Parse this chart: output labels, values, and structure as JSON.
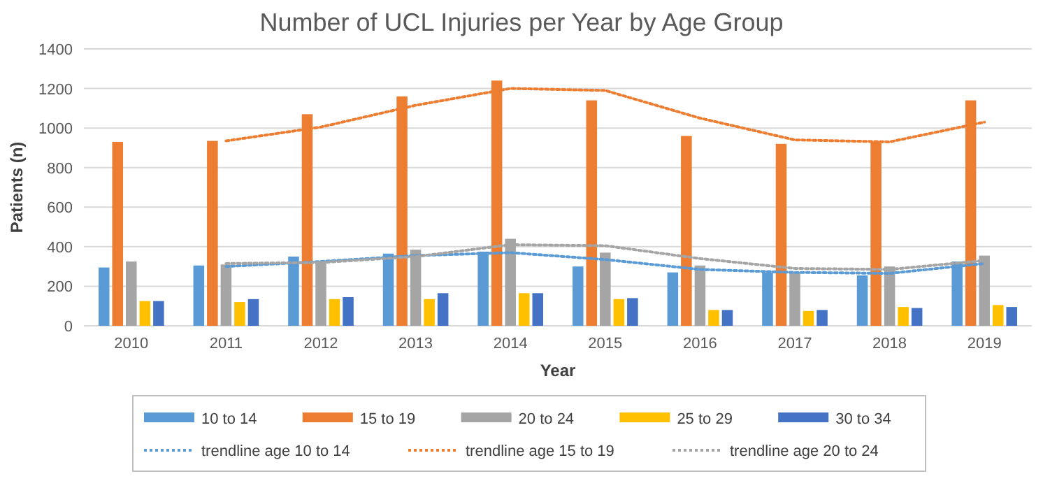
{
  "chart_data": {
    "type": "bar",
    "title": "Number of UCL Injuries per Year by Age Group",
    "xlabel": "Year",
    "ylabel": "Patients (n)",
    "categories": [
      "2010",
      "2011",
      "2012",
      "2013",
      "2014",
      "2015",
      "2016",
      "2017",
      "2018",
      "2019"
    ],
    "ylim": [
      0,
      1400
    ],
    "yticks": [
      0,
      200,
      400,
      600,
      800,
      1000,
      1200,
      1400
    ],
    "grid": "y",
    "legend": "bottom",
    "series": [
      {
        "name": "10 to 14",
        "color": "#5b9bd5",
        "values": [
          295,
          305,
          350,
          365,
          375,
          300,
          270,
          270,
          255,
          325
        ]
      },
      {
        "name": "15 to 19",
        "color": "#ed7d31",
        "values": [
          930,
          935,
          1070,
          1160,
          1240,
          1140,
          960,
          920,
          930,
          1140
        ]
      },
      {
        "name": "20 to 24",
        "color": "#a5a5a5",
        "values": [
          325,
          310,
          320,
          385,
          440,
          370,
          305,
          270,
          300,
          355
        ]
      },
      {
        "name": "25 to 29",
        "color": "#ffc000",
        "values": [
          125,
          120,
          135,
          135,
          165,
          135,
          80,
          75,
          95,
          105
        ]
      },
      {
        "name": "30 to 34",
        "color": "#4472c4",
        "values": [
          125,
          135,
          145,
          165,
          165,
          140,
          80,
          80,
          90,
          95
        ]
      },
      {
        "name": "trendline age 10 to 14",
        "type": "line",
        "line_style": "dotted",
        "color": "#5b9bd5",
        "values": [
          null,
          300,
          325,
          355,
          370,
          335,
          285,
          270,
          265,
          315
        ]
      },
      {
        "name": "trendline age 15 to 19",
        "type": "line",
        "line_style": "dotted",
        "color": "#ed7d31",
        "values": [
          null,
          935,
          1005,
          1115,
          1200,
          1190,
          1050,
          940,
          930,
          1030
        ]
      },
      {
        "name": "trendline age 20 to 24",
        "type": "line",
        "line_style": "dotted",
        "color": "#a5a5a5",
        "values": [
          null,
          315,
          320,
          350,
          410,
          405,
          340,
          290,
          285,
          330
        ]
      }
    ]
  }
}
